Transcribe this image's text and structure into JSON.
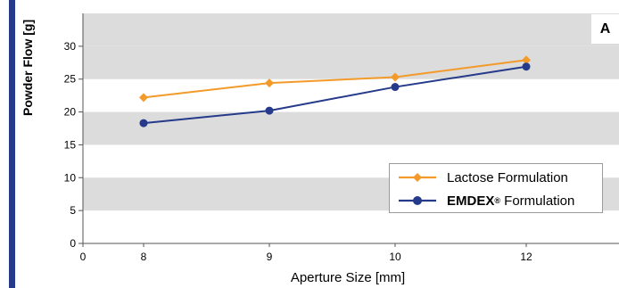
{
  "chart_data": {
    "type": "line",
    "panel_label": "A",
    "xlabel": "Aperture Size [mm]",
    "ylabel": "Powder Flow [g]",
    "x_ticks": [
      "0",
      "8",
      "9",
      "10",
      "12"
    ],
    "y_ticks": [
      0,
      5,
      10,
      15,
      20,
      25,
      30
    ],
    "ylim": [
      0,
      35
    ],
    "categories": [
      "8",
      "9",
      "10",
      "12"
    ],
    "grid": "alternating horizontal bands",
    "legend_position": "bottom-right",
    "series": [
      {
        "name": "Lactose Formulation",
        "color": "#f39a2b",
        "marker": "diamond",
        "values": [
          22.2,
          24.4,
          25.3,
          27.9
        ]
      },
      {
        "name_brand": "EMDEX",
        "name_mark": "®",
        "name_rest": " Formulation",
        "color": "#253a8a",
        "marker": "circle",
        "values": [
          18.3,
          20.2,
          23.8,
          26.9
        ]
      }
    ]
  }
}
